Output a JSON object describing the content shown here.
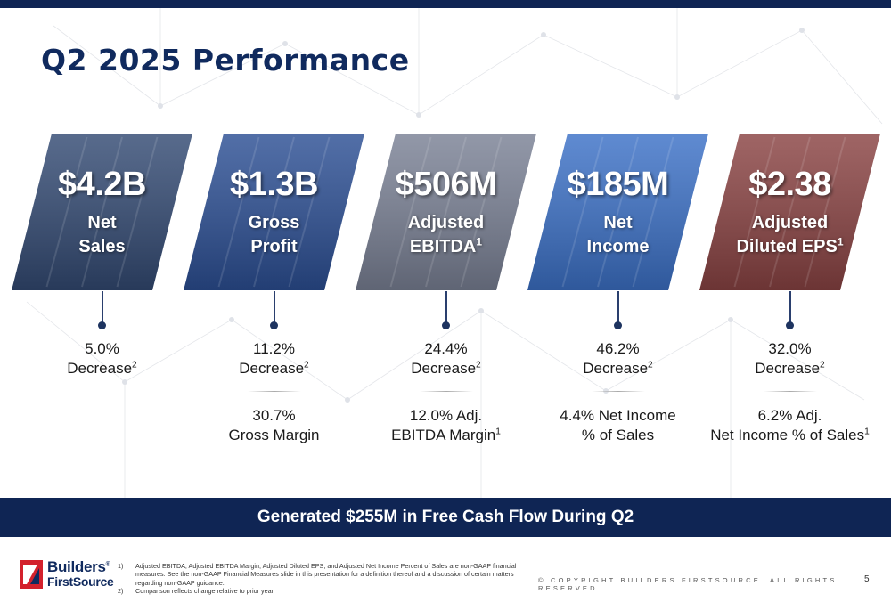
{
  "title": "Q2 2025 Performance",
  "cards": [
    {
      "value": "$4.2B",
      "label_line1": "Net",
      "label_line2": "Sales",
      "label_sup": "",
      "color": "#334a73",
      "change": "5.0%",
      "change_label": "Decrease",
      "change_sup": "2",
      "detail_line1": "",
      "detail_line2": "",
      "detail_sup": ""
    },
    {
      "value": "$1.3B",
      "label_line1": "Gross",
      "label_line2": "Profit",
      "label_sup": "",
      "color": "#2c4f94",
      "change": "11.2%",
      "change_label": "Decrease",
      "change_sup": "2",
      "detail_line1": "30.7%",
      "detail_line2": "Gross Margin",
      "detail_sup": ""
    },
    {
      "value": "$506M",
      "label_line1": "Adjusted",
      "label_line2": "EBITDA",
      "label_sup": "1",
      "color": "#7a8195",
      "change": "24.4%",
      "change_label": "Decrease",
      "change_sup": "2",
      "detail_line1": "12.0% Adj.",
      "detail_line2": "EBITDA Margin",
      "detail_sup": "1"
    },
    {
      "value": "$185M",
      "label_line1": "Net",
      "label_line2": "Income",
      "label_sup": "",
      "color": "#3c71c7",
      "change": "46.2%",
      "change_label": "Decrease",
      "change_sup": "2",
      "detail_line1": "4.4% Net Income",
      "detail_line2": "% of Sales",
      "detail_sup": ""
    },
    {
      "value": "$2.38",
      "label_line1": "Adjusted",
      "label_line2": "Diluted EPS",
      "label_sup": "1",
      "color": "#8a4343",
      "change": "32.0%",
      "change_label": "Decrease",
      "change_sup": "2",
      "detail_line1": "6.2% Adj.",
      "detail_line2": "Net Income % of Sales",
      "detail_sup": "1"
    }
  ],
  "banner": "Generated $255M in Free Cash Flow During Q2",
  "logo": {
    "line1": "Builders",
    "line1_mark": "®",
    "line2": "FirstSource",
    "icon": "builders-firstsource-logo-icon"
  },
  "footnotes": [
    {
      "num": "1)",
      "text": "Adjusted EBITDA, Adjusted EBITDA Margin, Adjusted Diluted EPS, and Adjusted Net Income Percent of Sales are non-GAAP financial measures. See the non-GAAP Financial Measures slide in this presentation for a definition thereof and a discussion of certain matters regarding non-GAAP guidance."
    },
    {
      "num": "2)",
      "text": "Comparison reflects change relative to prior year."
    }
  ],
  "copyright": "© COPYRIGHT BUILDERS FIRSTSOURCE. ALL RIGHTS RESERVED.",
  "page_number": "5"
}
